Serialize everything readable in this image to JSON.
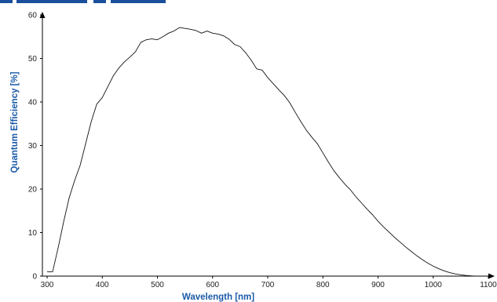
{
  "colors": {
    "accent": "#1a4f9c",
    "axis_title": "#1a5aa8",
    "line": "#111111"
  },
  "chart_data": {
    "type": "line",
    "title": "",
    "xlabel": "Wavelength [nm]",
    "ylabel": "Quantum Efficiency [%]",
    "xlim": [
      300,
      1100
    ],
    "ylim": [
      0,
      60
    ],
    "xticks": [
      300,
      400,
      500,
      600,
      700,
      800,
      900,
      1000,
      1100
    ],
    "yticks": [
      0,
      10,
      20,
      30,
      40,
      50,
      60
    ],
    "grid": false,
    "legend": "none",
    "series": [
      {
        "x": [
          300,
          310,
          320,
          330,
          340,
          350,
          360,
          370,
          380,
          390,
          400,
          410,
          420,
          430,
          440,
          450,
          460,
          470,
          480,
          490,
          500,
          510,
          520,
          530,
          540,
          550,
          560,
          570,
          580,
          590,
          600,
          610,
          620,
          630,
          640,
          650,
          660,
          670,
          680,
          690,
          700,
          710,
          720,
          730,
          740,
          750,
          760,
          770,
          780,
          790,
          800,
          810,
          820,
          830,
          840,
          850,
          860,
          870,
          880,
          890,
          900,
          910,
          920,
          930,
          940,
          950,
          960,
          970,
          980,
          990,
          1000,
          1010,
          1020,
          1030,
          1040,
          1050,
          1060,
          1070,
          1080
        ],
        "y": [
          1.0,
          1.0,
          6.5,
          12.5,
          18.0,
          22.0,
          25.5,
          30.5,
          35.5,
          39.5,
          41.0,
          43.5,
          46.0,
          47.8,
          49.2,
          50.3,
          51.5,
          53.7,
          54.3,
          54.5,
          54.3,
          55.0,
          55.8,
          56.3,
          57.1,
          56.9,
          56.7,
          56.4,
          55.8,
          56.3,
          55.8,
          55.6,
          55.2,
          54.4,
          53.2,
          52.7,
          51.3,
          49.6,
          47.6,
          47.3,
          45.6,
          44.2,
          42.8,
          41.5,
          39.8,
          37.6,
          35.5,
          33.5,
          31.9,
          30.4,
          28.3,
          26.2,
          24.2,
          22.6,
          21.1,
          19.8,
          18.2,
          16.8,
          15.4,
          14.1,
          12.6,
          11.3,
          10.1,
          8.9,
          7.8,
          6.7,
          5.7,
          4.7,
          3.8,
          3.0,
          2.3,
          1.7,
          1.2,
          0.8,
          0.5,
          0.3,
          0.15,
          0.05,
          0.0
        ]
      }
    ]
  }
}
